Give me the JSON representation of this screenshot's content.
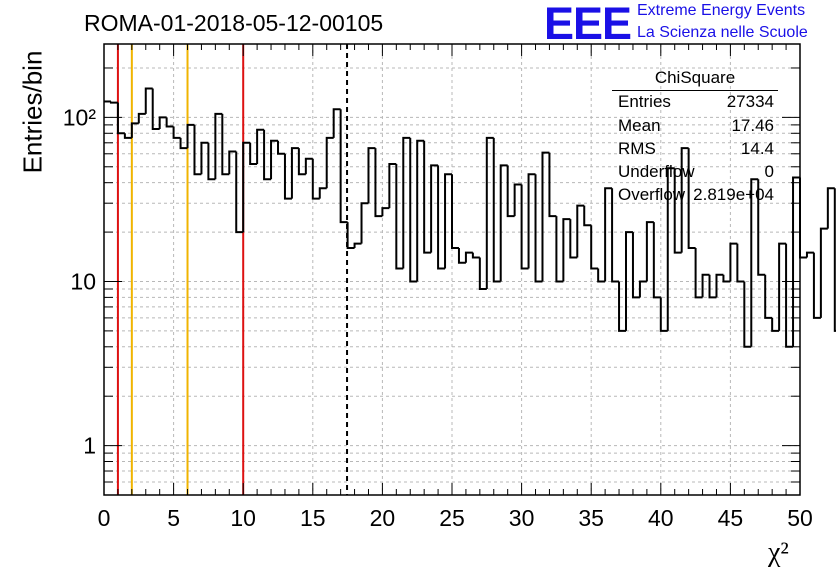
{
  "title": "ROMA-01-2018-05-12-00105",
  "logo": {
    "text": "EEE",
    "line1": "Extreme Energy Events",
    "line2": "La Scienza nelle Scuole",
    "color": "#1a10e6"
  },
  "stats": {
    "title": "ChiSquare",
    "rows": [
      {
        "label": "Entries",
        "value": "27334"
      },
      {
        "label": "Mean",
        "value": "17.46"
      },
      {
        "label": "RMS",
        "value": "14.4"
      },
      {
        "label": "Underflow",
        "value": "0"
      },
      {
        "label": "Overflow",
        "value": "2.819e+04"
      }
    ]
  },
  "chart_data": {
    "type": "bar",
    "histogram": true,
    "xlabel": "χ²",
    "ylabel": "Entries/bin",
    "xlim": [
      0,
      50
    ],
    "ylim": [
      0.5,
      280
    ],
    "yscale": "log",
    "bin_width": 0.5,
    "x_ticks": [
      0,
      5,
      10,
      15,
      20,
      25,
      30,
      35,
      40,
      45,
      50
    ],
    "y_tick_labels": [
      {
        "value": 1,
        "label": "1"
      },
      {
        "value": 10,
        "label": "10"
      },
      {
        "value": 100,
        "label": "10²"
      }
    ],
    "grid": true,
    "values": [
      125,
      123,
      80,
      75,
      92,
      105,
      150,
      85,
      100,
      88,
      75,
      65,
      90,
      45,
      70,
      42,
      105,
      45,
      62,
      20,
      70,
      52,
      84,
      42,
      72,
      60,
      32,
      65,
      45,
      56,
      32,
      37,
      75,
      112,
      23,
      16,
      17,
      30,
      65,
      25,
      28,
      52,
      12,
      75,
      10,
      72,
      15,
      51,
      12,
      45,
      16,
      13,
      15,
      14,
      9,
      75,
      10,
      51,
      25,
      39,
      12,
      45,
      10,
      61,
      25,
      10,
      24,
      14,
      29,
      22,
      12,
      10,
      37,
      10,
      5,
      20,
      8,
      10,
      23,
      8,
      5,
      49,
      15,
      65,
      16,
      8,
      11,
      8,
      11,
      10,
      17,
      10,
      4,
      42,
      11,
      6,
      5,
      17,
      4,
      43,
      14,
      15,
      6,
      21,
      37,
      5,
      22,
      15,
      3,
      75,
      5,
      41,
      5,
      46,
      19,
      7,
      11,
      12,
      27,
      25,
      7,
      13,
      64,
      4,
      21,
      3,
      31,
      11,
      15,
      5,
      10,
      12,
      9,
      13,
      12,
      37,
      12,
      7,
      14,
      14,
      9,
      10,
      5,
      25,
      10,
      39,
      8,
      36,
      10,
      9,
      5,
      6,
      13,
      22,
      16,
      11,
      12,
      10,
      10,
      13,
      9,
      14,
      15,
      33,
      13,
      17,
      14,
      14,
      14,
      11,
      48,
      12,
      53,
      7,
      22,
      34,
      21,
      13,
      19,
      23
    ],
    "reference_lines": [
      {
        "x": 1,
        "color": "#dd1111",
        "style": "solid"
      },
      {
        "x": 2,
        "color": "#f0b400",
        "style": "solid"
      },
      {
        "x": 6,
        "color": "#f0b400",
        "style": "solid"
      },
      {
        "x": 10,
        "color": "#dd1111",
        "style": "solid"
      },
      {
        "x": 17.46,
        "color": "#000000",
        "style": "dashed"
      }
    ]
  }
}
